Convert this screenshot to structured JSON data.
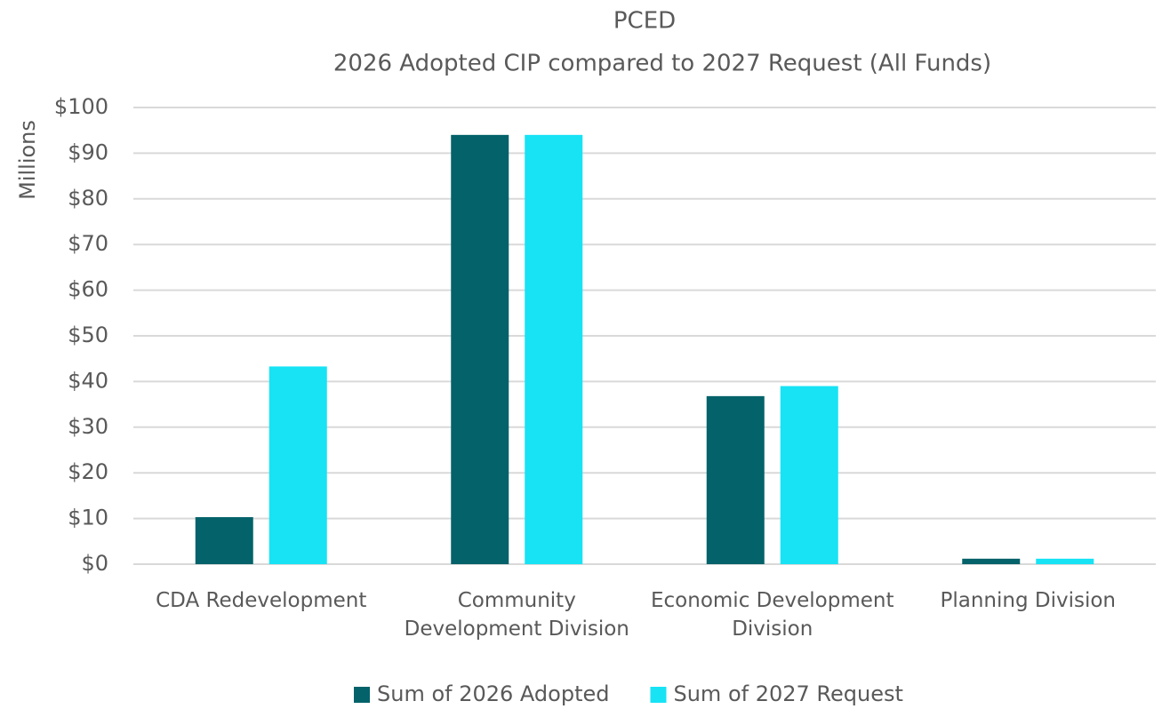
{
  "chart_data": {
    "type": "bar",
    "title": "PCED",
    "subtitle": "2026 Adopted CIP compared to 2027 Request (All Funds)",
    "y_label": "Millions",
    "categories": [
      "CDA Redevelopment",
      "Community Development Division",
      "Economic Development Division",
      "Planning Division"
    ],
    "series": [
      {
        "name": "Sum of 2026 Adopted",
        "color": "#03626a",
        "values": [
          10.3,
          94,
          36.8,
          1.2
        ]
      },
      {
        "name": "Sum of 2027 Request",
        "color": "#17e3f5",
        "values": [
          43.3,
          94,
          39,
          1.2
        ]
      }
    ],
    "ylim": [
      0,
      100
    ],
    "yticks": [
      {
        "value": 0,
        "label": "$0"
      },
      {
        "value": 10,
        "label": "$10"
      },
      {
        "value": 20,
        "label": "$20"
      },
      {
        "value": 30,
        "label": "$30"
      },
      {
        "value": 40,
        "label": "$40"
      },
      {
        "value": 50,
        "label": "$50"
      },
      {
        "value": 60,
        "label": "$60"
      },
      {
        "value": 70,
        "label": "$70"
      },
      {
        "value": 80,
        "label": "$80"
      },
      {
        "value": 90,
        "label": "$90"
      },
      {
        "value": 100,
        "label": "$100"
      }
    ],
    "grid": true,
    "legend": "bottom"
  }
}
